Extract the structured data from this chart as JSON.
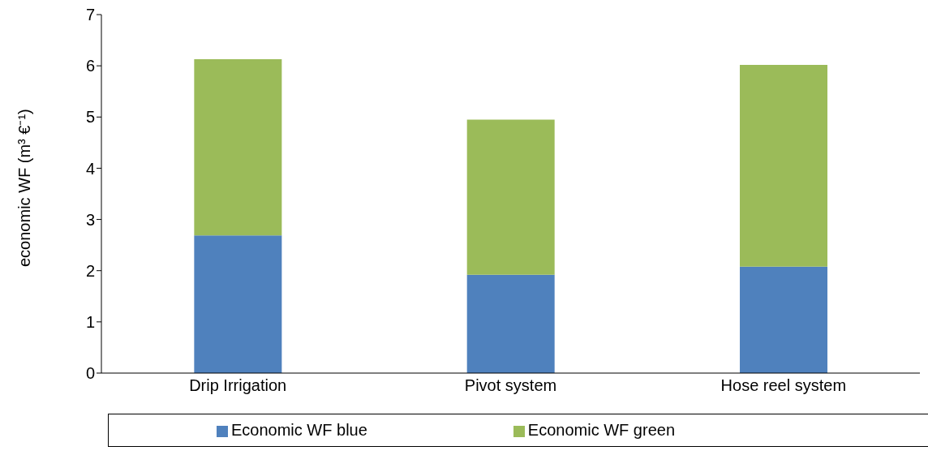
{
  "chart_data": {
    "type": "bar",
    "stacked": true,
    "ylabel": "economic WF (m³ €⁻¹)",
    "categories": [
      "Drip Irrigation",
      "Pivot system",
      "Hose reel system"
    ],
    "series": [
      {
        "name": "Economic WF blue",
        "color": "#4f81bd",
        "values": [
          2.69,
          1.92,
          2.08
        ]
      },
      {
        "name": "Economic WF green",
        "color": "#9bbb59",
        "values": [
          3.44,
          3.03,
          3.94
        ]
      }
    ],
    "ylim": [
      0,
      7
    ],
    "yticks": [
      0,
      1,
      2,
      3,
      4,
      5,
      6,
      7
    ],
    "legend": "bottom"
  }
}
